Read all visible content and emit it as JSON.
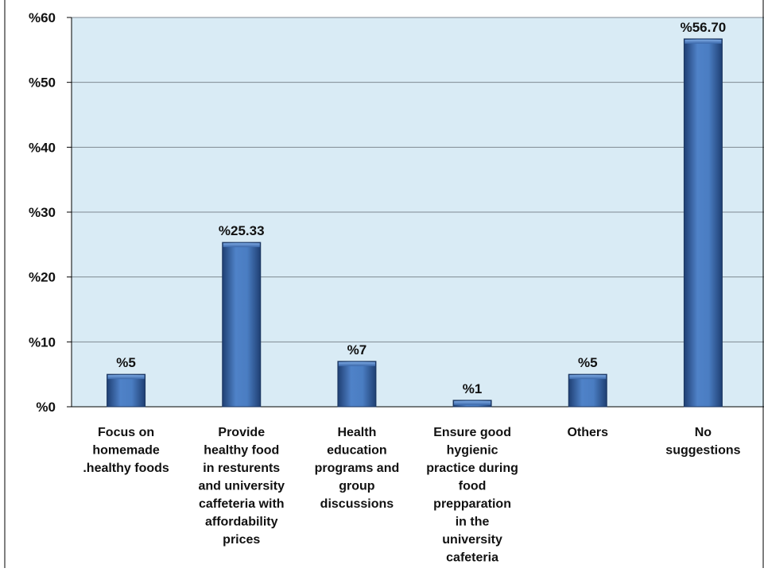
{
  "chart_data": {
    "type": "bar",
    "categories": [
      [
        "Focus on",
        "homemade",
        ".healthy foods"
      ],
      [
        "Provide",
        "healthy food",
        "in resturents",
        "and university",
        "caffeteria with",
        "affordability",
        "prices"
      ],
      [
        "Health",
        "education",
        "programs and",
        "group",
        "discussions"
      ],
      [
        "Ensure good",
        "hygienic",
        "practice during",
        "food",
        "prepparation",
        "in the",
        "university",
        "cafeteria"
      ],
      [
        "Others"
      ],
      [
        "No",
        "suggestions"
      ]
    ],
    "values": [
      5,
      25.33,
      7,
      1,
      5,
      56.7
    ],
    "data_labels": [
      "%5",
      "%25.33",
      "%7",
      "%1",
      "%5",
      "%56.70"
    ],
    "ylim": [
      0,
      60
    ],
    "yticks": [
      0,
      10,
      20,
      30,
      40,
      50,
      60
    ],
    "ytick_labels": [
      "%0",
      "%10",
      "%20",
      "%30",
      "%40",
      "%50",
      "%60"
    ],
    "title": "",
    "xlabel": "",
    "ylabel": "",
    "grid": true,
    "legend": "none",
    "colors": {
      "plot_background": "#d9ebf5",
      "bar_dark": "#254b85",
      "bar_light": "#4f82c8",
      "gridline": "#7f8a92",
      "axis": "#000000"
    }
  }
}
